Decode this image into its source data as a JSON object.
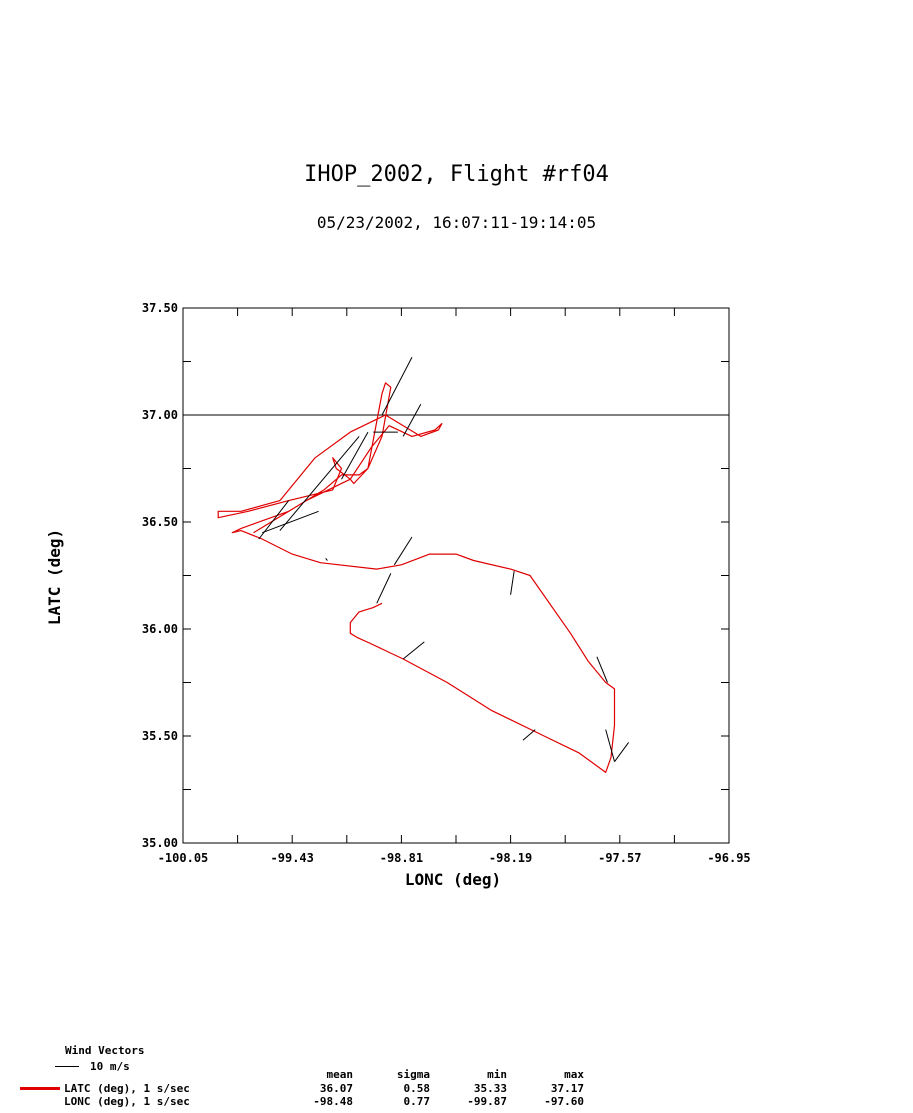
{
  "header": {
    "title": "IHOP_2002, Flight #rf04",
    "subtitle": "05/23/2002, 16:07:11-19:14:05"
  },
  "chart_data": {
    "type": "line",
    "title": "IHOP_2002, Flight #rf04",
    "subtitle": "05/23/2002, 16:07:11-19:14:05",
    "xlabel": "LONC (deg)",
    "ylabel": "LATC (deg)",
    "xlim": [
      -100.05,
      -96.95
    ],
    "ylim": [
      35.0,
      37.5
    ],
    "xticks": [
      "-100.05",
      "-99.43",
      "-98.81",
      "-98.19",
      "-97.57",
      "-96.95"
    ],
    "yticks": [
      "35.00",
      "35.50",
      "36.00",
      "36.50",
      "37.00",
      "37.50"
    ],
    "reference_line_y": 37.0,
    "grid": false,
    "series": [
      {
        "name": "LATC (deg), 1 s/sec",
        "color": "#e00000",
        "x": [
          -99.65,
          -99.35,
          -99.1,
          -98.98,
          -98.88,
          -98.75,
          -98.62,
          -98.58,
          -98.6,
          -98.7,
          -98.9,
          -99.1,
          -99.3,
          -99.5,
          -99.72,
          -99.85,
          -99.85,
          -99.68,
          -99.45,
          -99.2,
          -99.15,
          -99.2,
          -99.18,
          -99.1,
          -99.08,
          -99.0,
          -98.92,
          -98.9,
          -98.87,
          -98.92,
          -99.0,
          -99.05,
          -99.15,
          -99.25,
          -99.45,
          -99.72,
          -99.77,
          -99.72,
          -99.6,
          -99.43,
          -99.27,
          -98.95,
          -98.81,
          -98.65,
          -98.5,
          -98.4,
          -98.19,
          -98.08,
          -97.85,
          -97.75,
          -97.65,
          -97.6,
          -97.6,
          -97.62,
          -97.65,
          -97.8,
          -98.0,
          -98.3,
          -98.55,
          -98.8,
          -98.98,
          -99.06,
          -99.1,
          -99.1,
          -99.05,
          -98.97,
          -98.92
        ],
        "y": [
          36.45,
          36.6,
          36.7,
          36.85,
          36.95,
          36.9,
          36.93,
          36.96,
          36.93,
          36.9,
          37.0,
          36.92,
          36.8,
          36.6,
          36.55,
          36.55,
          36.52,
          36.55,
          36.6,
          36.65,
          36.75,
          36.8,
          36.75,
          36.7,
          36.68,
          36.75,
          37.1,
          37.15,
          37.13,
          36.9,
          36.75,
          36.72,
          36.72,
          36.65,
          36.55,
          36.47,
          36.45,
          36.46,
          36.42,
          36.35,
          36.31,
          36.28,
          36.3,
          36.35,
          36.35,
          36.32,
          36.28,
          36.25,
          35.98,
          35.85,
          35.75,
          35.72,
          35.55,
          35.4,
          35.33,
          35.42,
          35.5,
          35.62,
          35.75,
          35.86,
          35.93,
          35.96,
          35.98,
          36.03,
          36.08,
          36.1,
          36.12
        ]
      }
    ],
    "wind_vectors": [
      {
        "x": -98.75,
        "y": 37.27,
        "x2": -98.92,
        "y2": 37.0
      },
      {
        "x": -98.83,
        "y": 36.92,
        "x2": -98.97,
        "y2": 36.92
      },
      {
        "x": -98.7,
        "y": 37.05,
        "x2": -98.8,
        "y2": 36.9
      },
      {
        "x": -99.0,
        "y": 36.92,
        "x2": -99.15,
        "y2": 36.7
      },
      {
        "x": -99.05,
        "y": 36.9,
        "x2": -99.5,
        "y2": 36.46
      },
      {
        "x": -99.28,
        "y": 36.55,
        "x2": -99.6,
        "y2": 36.45
      },
      {
        "x": -99.45,
        "y": 36.6,
        "x2": -99.62,
        "y2": 36.42
      },
      {
        "x": -99.23,
        "y": 36.32,
        "x2": -99.24,
        "y2": 36.33
      },
      {
        "x": -98.75,
        "y": 36.43,
        "x2": -98.85,
        "y2": 36.3
      },
      {
        "x": -98.87,
        "y": 36.26,
        "x2": -98.95,
        "y2": 36.12
      },
      {
        "x": -98.68,
        "y": 35.94,
        "x2": -98.8,
        "y2": 35.86
      },
      {
        "x": -98.17,
        "y": 36.27,
        "x2": -98.19,
        "y2": 36.16
      },
      {
        "x": -98.05,
        "y": 35.53,
        "x2": -98.12,
        "y2": 35.48
      },
      {
        "x": -97.7,
        "y": 35.87,
        "x2": -97.64,
        "y2": 35.75
      },
      {
        "x": -97.65,
        "y": 35.53,
        "x2": -97.6,
        "y2": 35.38
      },
      {
        "x": -97.52,
        "y": 35.47,
        "x2": -97.6,
        "y2": 35.38
      }
    ]
  },
  "legend": {
    "wind_title": "Wind Vectors",
    "wind_scale": "10 m/s",
    "stats_headers": [
      "mean",
      "sigma",
      "min",
      "max"
    ],
    "rows": [
      {
        "label": "LATC (deg), 1 s/sec",
        "mean": "36.07",
        "sigma": "0.58",
        "min": "35.33",
        "max": "37.17",
        "color": "#e00000"
      },
      {
        "label": "LONC (deg), 1 s/sec",
        "mean": "-98.48",
        "sigma": "0.77",
        "min": "-99.87",
        "max": "-97.60",
        "color": ""
      }
    ]
  }
}
